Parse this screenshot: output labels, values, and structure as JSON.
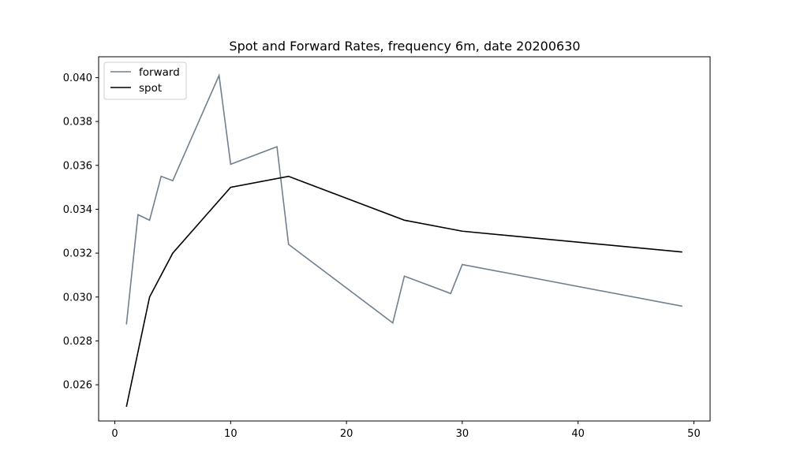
{
  "chart_data": {
    "type": "line",
    "title": "Spot and Forward Rates, frequency 6m, date 20200630",
    "xlabel": "",
    "ylabel": "",
    "xlim": [
      -1.4,
      51.4
    ],
    "ylim": [
      0.02435,
      0.04095
    ],
    "x_ticks": [
      0,
      10,
      20,
      30,
      40,
      50
    ],
    "x_tick_labels": [
      "0",
      "10",
      "20",
      "30",
      "40",
      "50"
    ],
    "y_ticks": [
      0.026,
      0.028,
      0.03,
      0.032,
      0.034,
      0.036,
      0.038,
      0.04
    ],
    "y_tick_labels": [
      "0.026",
      "0.028",
      "0.030",
      "0.032",
      "0.034",
      "0.036",
      "0.038",
      "0.040"
    ],
    "grid": false,
    "legend_position": "upper-left",
    "series": [
      {
        "name": "forward",
        "color": "#708090",
        "x": [
          1,
          2,
          3,
          4,
          5,
          9,
          10,
          14,
          15,
          24,
          25,
          29,
          30,
          49
        ],
        "y": [
          0.02875,
          0.03375,
          0.0335,
          0.0355,
          0.0353,
          0.0401,
          0.03605,
          0.03685,
          0.0324,
          0.02882,
          0.03095,
          0.03016,
          0.03148,
          0.02958
        ]
      },
      {
        "name": "spot",
        "color": "#000000",
        "x": [
          1,
          3,
          5,
          10,
          15,
          25,
          30,
          49
        ],
        "y": [
          0.025,
          0.03,
          0.032,
          0.035,
          0.0355,
          0.0335,
          0.033,
          0.03205
        ]
      }
    ]
  }
}
